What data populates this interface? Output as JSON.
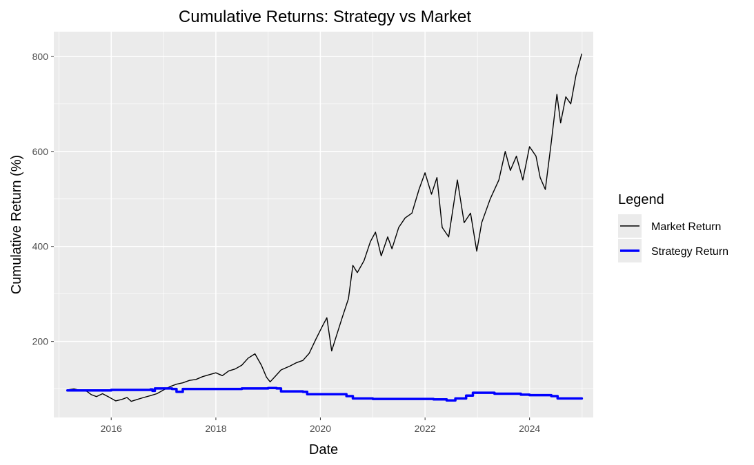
{
  "chart_data": {
    "type": "line",
    "title": "Cumulative Returns: Strategy vs Market",
    "xlabel": "Date",
    "ylabel": "Cumulative Return (%)",
    "x_axis": "date",
    "xlim": [
      "2014-11-26",
      "2025-03-21"
    ],
    "ylim": [
      40,
      852
    ],
    "x_ticks": [
      {
        "date": "2016-01-01",
        "label": "2016"
      },
      {
        "date": "2018-01-01",
        "label": "2018"
      },
      {
        "date": "2020-01-01",
        "label": "2020"
      },
      {
        "date": "2022-01-01",
        "label": "2022"
      },
      {
        "date": "2024-01-01",
        "label": "2024"
      }
    ],
    "y_ticks": [
      200,
      400,
      600,
      800
    ],
    "grid": true,
    "legend": {
      "title": "Legend",
      "position": "right"
    },
    "colors": {
      "panel": "#ebebeb",
      "grid": "#ffffff",
      "market": "#000000",
      "strategy": "#0000ff"
    },
    "series": [
      {
        "name": "Market Return",
        "color": "#000000",
        "points": [
          [
            "2015-03-01",
            98
          ],
          [
            "2015-04-15",
            100
          ],
          [
            "2015-06-01",
            97
          ],
          [
            "2015-07-15",
            95
          ],
          [
            "2015-08-15",
            88
          ],
          [
            "2015-09-20",
            84
          ],
          [
            "2015-11-01",
            90
          ],
          [
            "2015-12-15",
            83
          ],
          [
            "2016-02-01",
            75
          ],
          [
            "2016-03-15",
            78
          ],
          [
            "2016-04-20",
            82
          ],
          [
            "2016-05-20",
            74
          ],
          [
            "2016-07-01",
            78
          ],
          [
            "2016-08-15",
            82
          ],
          [
            "2016-10-01",
            86
          ],
          [
            "2016-11-15",
            90
          ],
          [
            "2017-01-01",
            98
          ],
          [
            "2017-02-15",
            105
          ],
          [
            "2017-04-01",
            110
          ],
          [
            "2017-05-15",
            113
          ],
          [
            "2017-07-01",
            118
          ],
          [
            "2017-08-15",
            120
          ],
          [
            "2017-10-01",
            126
          ],
          [
            "2017-11-15",
            130
          ],
          [
            "2018-01-01",
            134
          ],
          [
            "2018-02-15",
            128
          ],
          [
            "2018-04-01",
            138
          ],
          [
            "2018-05-15",
            142
          ],
          [
            "2018-07-01",
            150
          ],
          [
            "2018-08-15",
            165
          ],
          [
            "2018-10-01",
            174
          ],
          [
            "2018-11-15",
            150
          ],
          [
            "2018-12-20",
            125
          ],
          [
            "2019-01-15",
            115
          ],
          [
            "2019-02-15",
            125
          ],
          [
            "2019-04-01",
            140
          ],
          [
            "2019-06-01",
            148
          ],
          [
            "2019-07-15",
            155
          ],
          [
            "2019-09-01",
            160
          ],
          [
            "2019-10-15",
            175
          ],
          [
            "2019-12-01",
            205
          ],
          [
            "2020-01-15",
            232
          ],
          [
            "2020-02-15",
            250
          ],
          [
            "2020-03-20",
            180
          ],
          [
            "2020-04-15",
            205
          ],
          [
            "2020-06-01",
            250
          ],
          [
            "2020-07-15",
            290
          ],
          [
            "2020-08-15",
            360
          ],
          [
            "2020-09-15",
            345
          ],
          [
            "2020-11-01",
            370
          ],
          [
            "2020-12-15",
            410
          ],
          [
            "2021-01-20",
            430
          ],
          [
            "2021-03-01",
            380
          ],
          [
            "2021-04-15",
            420
          ],
          [
            "2021-05-15",
            395
          ],
          [
            "2021-07-01",
            440
          ],
          [
            "2021-08-15",
            460
          ],
          [
            "2021-10-01",
            470
          ],
          [
            "2021-11-20",
            520
          ],
          [
            "2022-01-01",
            555
          ],
          [
            "2022-02-15",
            510
          ],
          [
            "2022-03-25",
            545
          ],
          [
            "2022-05-01",
            440
          ],
          [
            "2022-06-15",
            420
          ],
          [
            "2022-08-15",
            540
          ],
          [
            "2022-10-01",
            450
          ],
          [
            "2022-11-15",
            470
          ],
          [
            "2022-12-28",
            390
          ],
          [
            "2023-02-01",
            450
          ],
          [
            "2023-04-01",
            500
          ],
          [
            "2023-06-01",
            540
          ],
          [
            "2023-07-15",
            600
          ],
          [
            "2023-08-20",
            560
          ],
          [
            "2023-10-01",
            590
          ],
          [
            "2023-11-15",
            540
          ],
          [
            "2024-01-01",
            610
          ],
          [
            "2024-02-15",
            590
          ],
          [
            "2024-03-15",
            545
          ],
          [
            "2024-04-20",
            520
          ],
          [
            "2024-06-01",
            620
          ],
          [
            "2024-07-10",
            720
          ],
          [
            "2024-08-05",
            660
          ],
          [
            "2024-09-10",
            715
          ],
          [
            "2024-10-15",
            700
          ],
          [
            "2024-11-20",
            760
          ],
          [
            "2024-12-30",
            805
          ]
        ]
      },
      {
        "name": "Strategy Return",
        "color": "#0000ff",
        "points": [
          [
            "2015-03-01",
            97
          ],
          [
            "2015-06-01",
            97
          ],
          [
            "2016-01-01",
            98
          ],
          [
            "2016-10-01",
            99
          ],
          [
            "2016-10-15",
            96
          ],
          [
            "2016-11-01",
            101
          ],
          [
            "2017-03-01",
            100
          ],
          [
            "2017-04-01",
            94
          ],
          [
            "2017-05-15",
            100
          ],
          [
            "2018-01-01",
            100
          ],
          [
            "2018-07-01",
            101
          ],
          [
            "2019-01-01",
            102
          ],
          [
            "2019-03-01",
            101
          ],
          [
            "2019-04-01",
            95
          ],
          [
            "2019-09-01",
            94
          ],
          [
            "2019-10-01",
            89
          ],
          [
            "2020-04-01",
            89
          ],
          [
            "2020-07-01",
            85
          ],
          [
            "2020-08-15",
            80
          ],
          [
            "2021-01-01",
            79
          ],
          [
            "2022-03-01",
            78
          ],
          [
            "2022-06-01",
            76
          ],
          [
            "2022-08-01",
            80
          ],
          [
            "2022-10-15",
            86
          ],
          [
            "2022-12-01",
            92
          ],
          [
            "2023-03-01",
            92
          ],
          [
            "2023-05-01",
            90
          ],
          [
            "2023-11-01",
            88
          ],
          [
            "2024-01-01",
            87
          ],
          [
            "2024-06-01",
            85
          ],
          [
            "2024-07-15",
            80
          ],
          [
            "2024-12-31",
            80
          ]
        ]
      }
    ]
  }
}
